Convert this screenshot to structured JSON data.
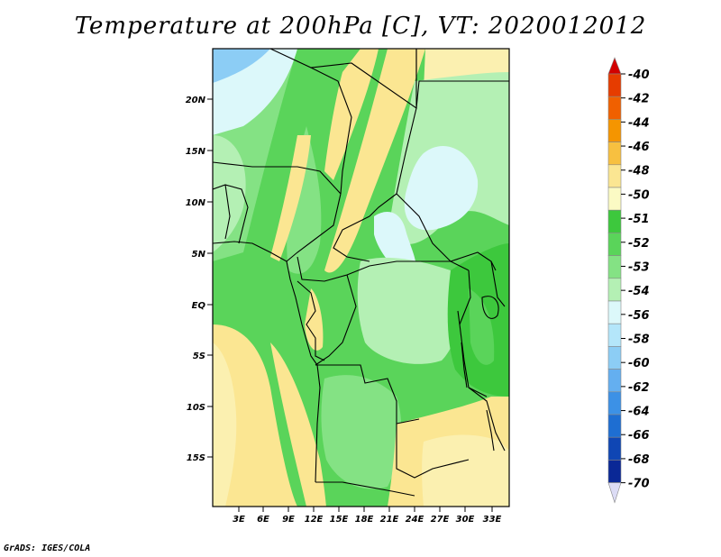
{
  "title": "Temperature at 200hPa [C], VT: 2020012012",
  "footer": "GrADS: IGES/COLA",
  "map": {
    "lat_labels": [
      "20N",
      "15N",
      "10N",
      "5N",
      "EQ",
      "5S",
      "10S",
      "15S"
    ],
    "lon_labels": [
      "3E",
      "6E",
      "9E",
      "12E",
      "15E",
      "18E",
      "21E",
      "24E",
      "27E",
      "30E",
      "33E"
    ]
  },
  "legend": {
    "labels": [
      "-40",
      "-42",
      "-44",
      "-46",
      "-48",
      "-50",
      "-51",
      "-52",
      "-53",
      "-54",
      "-56",
      "-58",
      "-60",
      "-62",
      "-64",
      "-66",
      "-68",
      "-70"
    ],
    "colors": [
      "#d20000",
      "#e63c00",
      "#f06000",
      "#f59500",
      "#f7c040",
      "#fbe692",
      "#fbfac4",
      "#3dc83d",
      "#5ad45a",
      "#84e284",
      "#b4f0b4",
      "#dcf8fa",
      "#b4e6fa",
      "#8ccdf5",
      "#64aff0",
      "#3c91e6",
      "#1e6ed2",
      "#0f46b4",
      "#0a2896",
      "#141e78"
    ],
    "top_arrow_color": "#d20000",
    "bottom_arrow_color": "#dcdcf5"
  },
  "palette": {
    "light_yellow": "#fbf0b0",
    "yellow": "#fbe692",
    "pale_green": "#b4f0b4",
    "light_green": "#84e284",
    "green": "#5ad45a",
    "dark_green": "#3dc83d",
    "cyan": "#dcf8fa",
    "blue": "#8ccdf5"
  }
}
